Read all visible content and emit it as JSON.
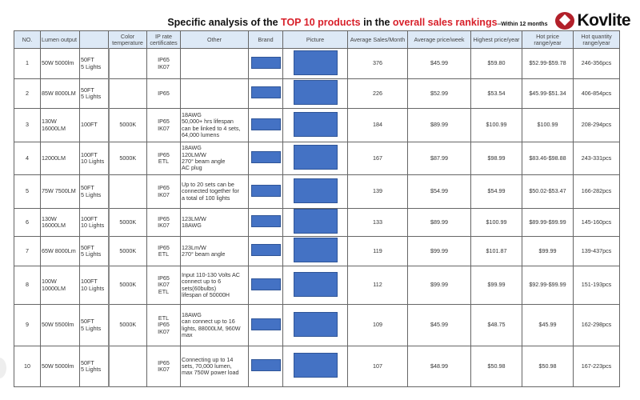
{
  "title": {
    "prefix": "Specific analysis of the ",
    "highlight1": "TOP 10 products",
    "middle": " in the ",
    "highlight2": "overall sales rankings",
    "suffix": "--Within 12 months",
    "accent_color": "#d8202a"
  },
  "logo": {
    "text": "Kovlite",
    "color": "#b2202a"
  },
  "table": {
    "headers": [
      "NO.",
      "Lumen output",
      "",
      "Color temperature",
      "IP rate certificates",
      "Other",
      "Brand",
      "Picture",
      "Average Sales/Month",
      "Average price/week",
      "Highest price/year",
      "Hot price range/year",
      "Hot quantity range/year"
    ],
    "rows": [
      {
        "no": "1",
        "lumen": "50W 5000lm",
        "length": "50FT\n5 Lights",
        "color_temp": "",
        "ip": "IP65\nIK07",
        "other": "",
        "sales": "376",
        "avg_price": "$45.99",
        "highest": "$59.80",
        "hot_price": "$52.99-$59.78",
        "hot_qty": "246-356pcs"
      },
      {
        "no": "2",
        "lumen": "85W 8000LM",
        "length": "50FT\n5 Lights",
        "color_temp": "",
        "ip": "IP65",
        "other": "",
        "sales": "226",
        "avg_price": "$52.99",
        "highest": "$53.54",
        "hot_price": "$45.99-$51.34",
        "hot_qty": "406-854pcs"
      },
      {
        "no": "3",
        "lumen": "130W\n16000LM",
        "length": "100FT",
        "color_temp": "5000K",
        "ip": "IP65\nIK07",
        "other": "18AWG\n50,000+ hrs lifespan\ncan be linked to 4 sets,\n64,000 lumens",
        "sales": "184",
        "avg_price": "$89.99",
        "highest": "$100.99",
        "hot_price": "$100.99",
        "hot_qty": "208-294pcs"
      },
      {
        "no": "4",
        "lumen": "12000LM",
        "length": "100FT\n10 Lights",
        "color_temp": "5000K",
        "ip": "IP65\nETL",
        "other": "18AWG\n120LM/W\n270° beam angle\nAC plug",
        "sales": "167",
        "avg_price": "$87.99",
        "highest": "$98.99",
        "hot_price": "$83.46-$98.88",
        "hot_qty": "243-331pcs"
      },
      {
        "no": "5",
        "lumen": "75W 7500LM",
        "length": "50FT\n5 Lights",
        "color_temp": "",
        "ip": "IP65\nIK07",
        "other": "Up to 20 sets can be\nconnected together for\na total of 100 lights",
        "sales": "139",
        "avg_price": "$54.99",
        "highest": "$54.99",
        "hot_price": "$50.02-$53.47",
        "hot_qty": "166-282pcs"
      },
      {
        "no": "6",
        "lumen": "130W\n16000LM",
        "length": "100FT\n10 Lights",
        "color_temp": "5000K",
        "ip": "IP65\nIK07",
        "other": "123LM/W\n18AWG",
        "sales": "133",
        "avg_price": "$89.99",
        "highest": "$100.99",
        "hot_price": "$89.99-$99.99",
        "hot_qty": "145-160pcs"
      },
      {
        "no": "7",
        "lumen": "65W 8000Lm",
        "length": "50FT\n5 Lights",
        "color_temp": "5000K",
        "ip": "IP65\nETL",
        "other": "123Lm/W\n270° beam angle",
        "sales": "119",
        "avg_price": "$99.99",
        "highest": "$101.87",
        "hot_price": "$99.99",
        "hot_qty": "139-437pcs"
      },
      {
        "no": "8",
        "lumen": "100W\n10000LM",
        "length": "100FT\n10 Lights",
        "color_temp": "5000K",
        "ip": "IP65\nIK07\nETL",
        "other": "Input 110-130 Volts AC\nconnect up to 6\nsets(60bulbs)\nlifespan of 50000H",
        "sales": "112",
        "avg_price": "$99.99",
        "highest": "$99.99",
        "hot_price": "$92.99-$99.99",
        "hot_qty": "151-193pcs"
      },
      {
        "no": "9",
        "lumen": "50W 5500lm",
        "length": "50FT\n5 Lights",
        "color_temp": "5000K",
        "ip": "ETL\nIP65\nIK07",
        "other": "18AWG\ncan connect up to 16\nlights, 88000LM, 960W\nmax",
        "sales": "109",
        "avg_price": "$45.99",
        "highest": "$48.75",
        "hot_price": "$45.99",
        "hot_qty": "162-298pcs"
      },
      {
        "no": "10",
        "lumen": "50W 5000lm",
        "length": "50FT\n5 Lights",
        "color_temp": "",
        "ip": "IP65\nIK07",
        "other": "Connecting up to 14\nsets, 70,000 lumen,\nmax 750W power load",
        "sales": "107",
        "avg_price": "$48.99",
        "highest": "$50.98",
        "hot_price": "$50.98",
        "hot_qty": "167-223pcs"
      }
    ]
  }
}
